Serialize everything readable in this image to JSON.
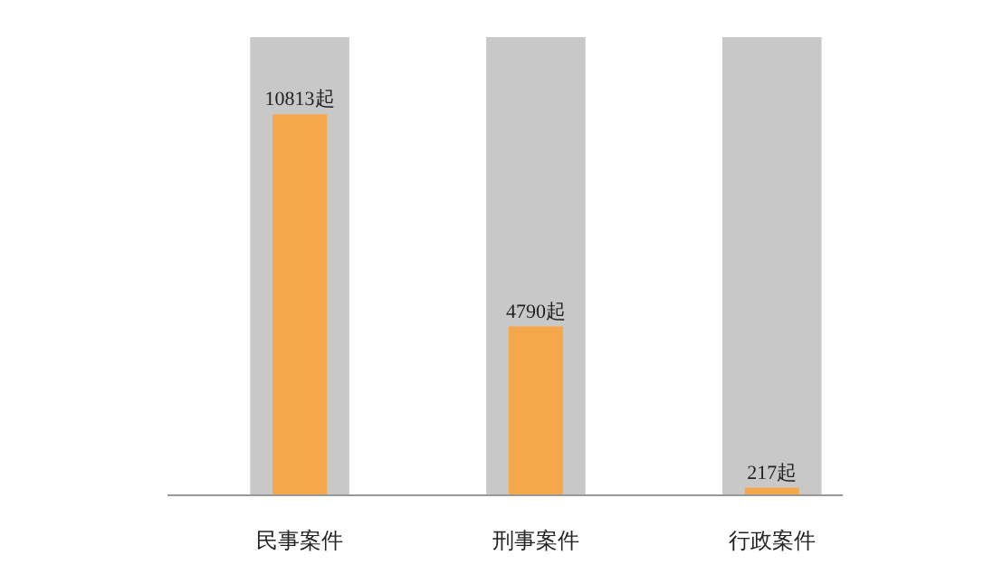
{
  "chart_data": {
    "type": "bar",
    "categories": [
      "民事案件",
      "刑事案件",
      "行政案件"
    ],
    "series": [
      {
        "color": "#c8c8c8",
        "values": [
          13000,
          13000,
          13000
        ]
      },
      {
        "color": "#f4a84a",
        "values": [
          10813,
          4790,
          217
        ],
        "value_labels": [
          "10813起",
          "4790起",
          "217起"
        ]
      }
    ]
  }
}
